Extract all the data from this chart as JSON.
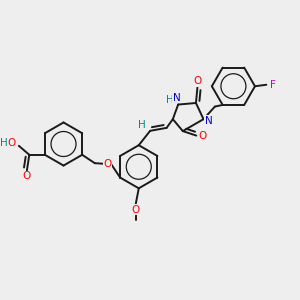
{
  "background_color": "#eeeeee",
  "bond_color": "#1a1a1a",
  "label_colors": {
    "O": "#ff0000",
    "N": "#0000cc",
    "F": "#cc00cc",
    "H": "#008888"
  },
  "lw": 1.4,
  "fs": 7.5
}
